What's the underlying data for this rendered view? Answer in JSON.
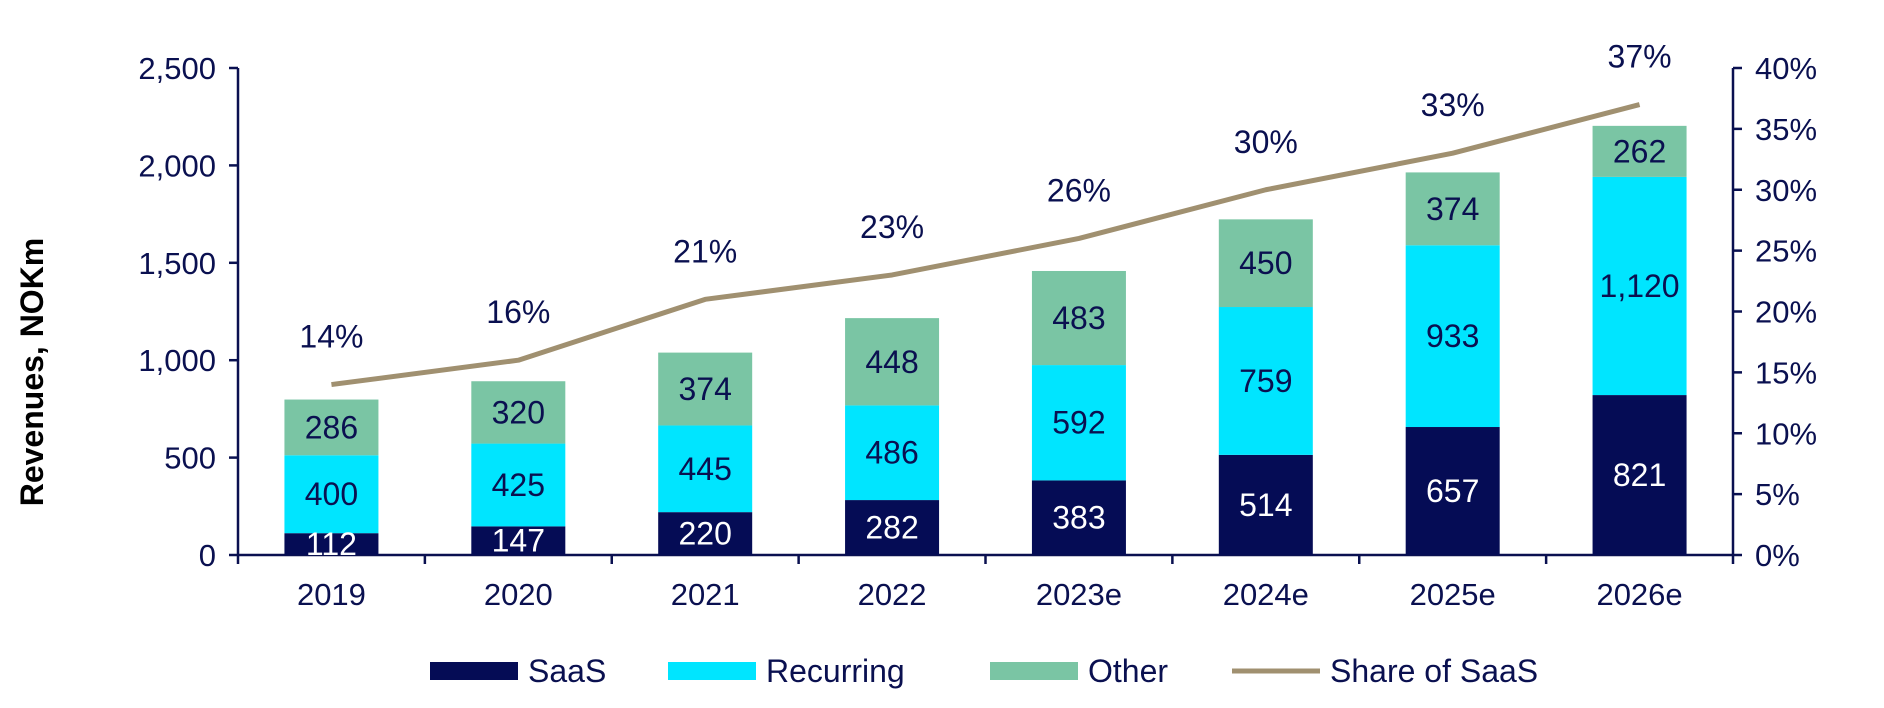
{
  "chart_data": {
    "type": "bar",
    "stacked": true,
    "categories": [
      "2019",
      "2020",
      "2021",
      "2022",
      "2023e",
      "2024e",
      "2025e",
      "2026e"
    ],
    "series": [
      {
        "name": "SaaS",
        "color": "#050c55",
        "label_color": "#ffffff",
        "values": [
          112,
          147,
          220,
          282,
          383,
          514,
          657,
          821
        ]
      },
      {
        "name": "Recurring",
        "color": "#00e5ff",
        "label_color": "#0a1050",
        "values": [
          400,
          425,
          445,
          486,
          592,
          759,
          933,
          1120
        ]
      },
      {
        "name": "Other",
        "color": "#7ac5a4",
        "label_color": "#0a1050",
        "values": [
          286,
          320,
          374,
          448,
          483,
          450,
          374,
          262
        ]
      }
    ],
    "value_labels": {
      "SaaS": [
        "112",
        "147",
        "220",
        "282",
        "383",
        "514",
        "657",
        "821"
      ],
      "Recurring": [
        "400",
        "425",
        "445",
        "486",
        "592",
        "759",
        "933",
        "1,120"
      ],
      "Other": [
        "286",
        "320",
        "374",
        "448",
        "483",
        "450",
        "374",
        "262"
      ]
    },
    "line": {
      "name": "Share of SaaS",
      "color": "#a09070",
      "axis": "right",
      "values": [
        14,
        16,
        21,
        23,
        26,
        30,
        33,
        37
      ],
      "labels": [
        "14%",
        "16%",
        "21%",
        "23%",
        "26%",
        "30%",
        "33%",
        "37%"
      ]
    },
    "ylabel": "Revenues, NOKm",
    "xlabel": "",
    "ylim": [
      0,
      2500
    ],
    "yticks": [
      0,
      500,
      1000,
      1500,
      2000,
      2500
    ],
    "ytick_labels": [
      "0",
      "500",
      "1,000",
      "1,500",
      "2,000",
      "2,500"
    ],
    "y2lim": [
      0,
      40
    ],
    "y2ticks": [
      0,
      5,
      10,
      15,
      20,
      25,
      30,
      35,
      40
    ],
    "y2tick_labels": [
      "0%",
      "5%",
      "10%",
      "15%",
      "20%",
      "25%",
      "30%",
      "35%",
      "40%"
    ],
    "legend": {
      "position": "bottom",
      "entries": [
        "SaaS",
        "Recurring",
        "Other",
        "Share of SaaS"
      ]
    },
    "grid": false,
    "axis_color": "#0a1050"
  }
}
